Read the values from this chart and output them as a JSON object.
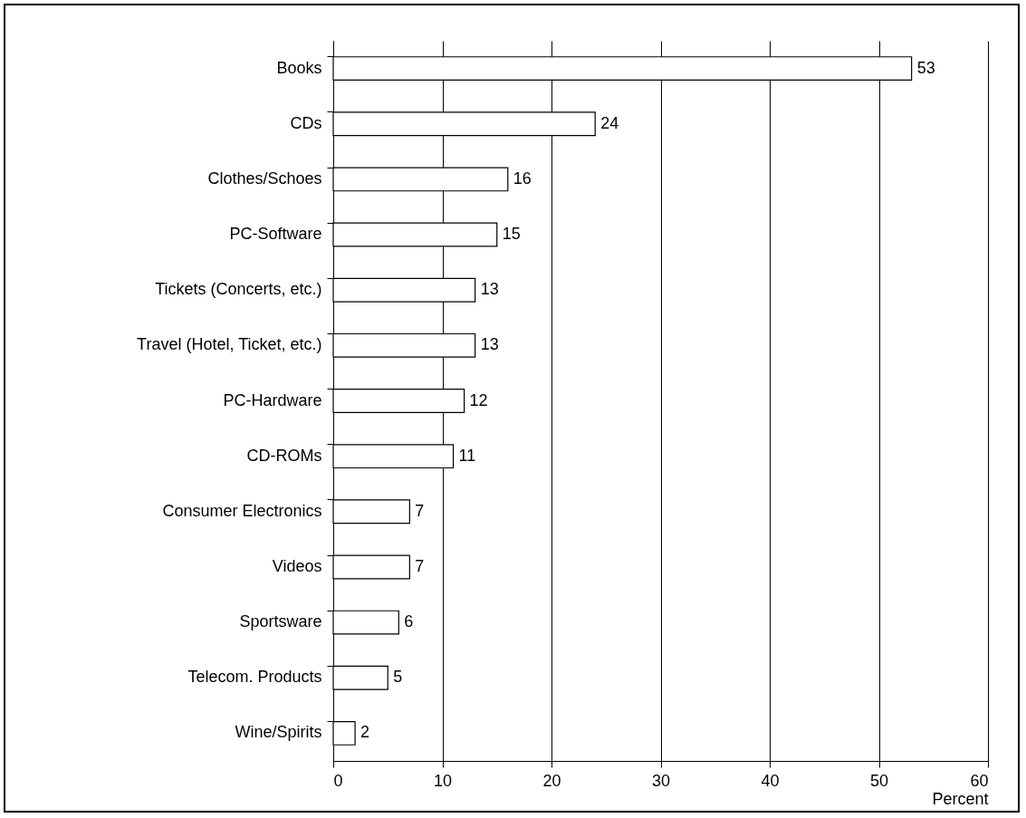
{
  "chart_data": {
    "type": "bar",
    "orientation": "horizontal",
    "xlabel": "Percent",
    "categories": [
      "Books",
      "CDs",
      "Clothes/Schoes",
      "PC-Software",
      "Tickets (Concerts, etc.)",
      "Travel (Hotel, Ticket, etc.)",
      "PC-Hardware",
      "CD-ROMs",
      "Consumer Electronics",
      "Videos",
      "Sportsware",
      "Telecom. Products",
      "Wine/Spirits"
    ],
    "values": [
      53,
      24,
      16,
      15,
      13,
      13,
      12,
      11,
      7,
      7,
      6,
      5,
      2
    ],
    "color": "#ffffff",
    "xlim": [
      0,
      60
    ],
    "xticks": [
      0,
      10,
      20,
      30,
      40,
      50,
      60
    ],
    "grid": "x",
    "data_labels": true
  }
}
